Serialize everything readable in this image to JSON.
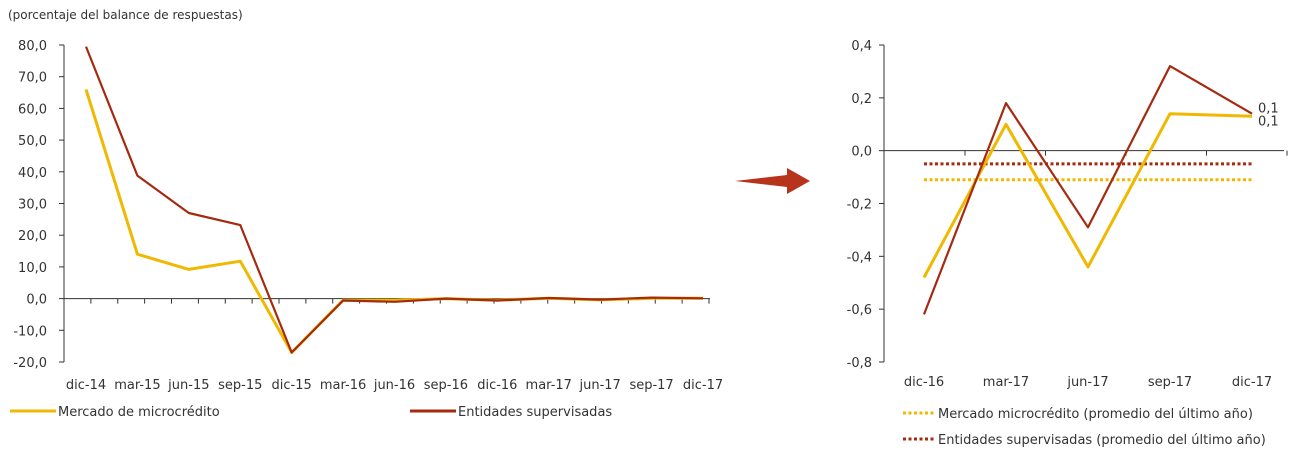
{
  "chart_data": [
    {
      "type": "line",
      "title": "",
      "subtitle": "(porcentaje del balance de respuestas)",
      "xlabel": "",
      "ylabel": "",
      "ylim": [
        -20,
        80
      ],
      "ytick_values": [
        -20,
        -10,
        0,
        10,
        20,
        30,
        40,
        50,
        60,
        70,
        80
      ],
      "ytick_labels": [
        "-20,0",
        "-10,0",
        "0,0",
        "10,0",
        "20,0",
        "30,0",
        "40,0",
        "50,0",
        "60,0",
        "70,0",
        "80,0"
      ],
      "categories": [
        "dic-14",
        "mar-15",
        "jun-15",
        "sep-15",
        "dic-15",
        "mar-16",
        "jun-16",
        "sep-16",
        "dic-16",
        "mar-17",
        "jun-17",
        "sep-17",
        "dic-17"
      ],
      "grid": false,
      "legend_position": "bottom",
      "series": [
        {
          "name": "Mercado de microcrédito",
          "color": "#F0B800",
          "dashed": false,
          "values": [
            66.0,
            14.0,
            9.2,
            11.8,
            -17.0,
            -0.5,
            -0.5,
            0.0,
            -0.5,
            0.1,
            -0.4,
            0.1,
            0.1
          ]
        },
        {
          "name": "Entidades supervisadas",
          "color": "#A52A0F",
          "dashed": false,
          "values": [
            79.5,
            38.8,
            27.0,
            23.2,
            -17.0,
            -0.6,
            -1.0,
            0.0,
            -0.6,
            0.2,
            -0.3,
            0.3,
            0.1
          ]
        }
      ]
    },
    {
      "type": "line",
      "title": "",
      "xlabel": "",
      "ylabel": "",
      "ylim": [
        -0.8,
        0.4
      ],
      "ytick_values": [
        -0.8,
        -0.6,
        -0.4,
        -0.2,
        0.0,
        0.2,
        0.4
      ],
      "ytick_labels": [
        "-0,8",
        "-0,6",
        "-0,4",
        "-0,2",
        "0,0",
        "0,2",
        "0,4"
      ],
      "categories": [
        "dic-16",
        "mar-17",
        "jun-17",
        "sep-17",
        "dic-17"
      ],
      "grid": false,
      "legend_position": "bottom",
      "series": [
        {
          "name": "Mercado microcrédito",
          "color": "#F0B800",
          "dashed": false,
          "values": [
            -0.48,
            0.1,
            -0.44,
            0.14,
            0.13
          ]
        },
        {
          "name": "Entidades supervisadas",
          "color": "#A52A0F",
          "dashed": false,
          "values": [
            -0.62,
            0.18,
            -0.29,
            0.32,
            0.14
          ]
        },
        {
          "name": "Mercado microcrédito (promedio del último año)",
          "color": "#F0B800",
          "dashed": true,
          "values": [
            -0.11,
            -0.11,
            -0.11,
            -0.11,
            -0.11
          ]
        },
        {
          "name": "Entidades supervisadas (promedio del último año)",
          "color": "#A52A0F",
          "dashed": true,
          "values": [
            -0.05,
            -0.05,
            -0.05,
            -0.05,
            -0.05
          ]
        }
      ],
      "annotations": [
        {
          "text": "0,1",
          "category": "dic-17",
          "value": 0.14
        },
        {
          "text": "0,1",
          "category": "dic-17",
          "value": 0.13
        }
      ]
    }
  ],
  "arrow": {
    "color": "#B8331C"
  }
}
